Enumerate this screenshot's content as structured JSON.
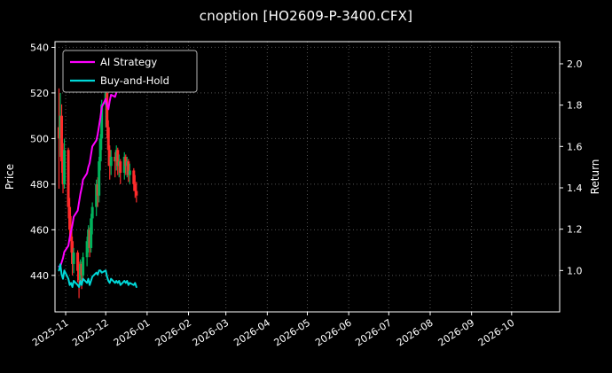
{
  "chart_data": {
    "type": "candlestick_with_lines",
    "title": "cnoption [HO2609-P-3400.CFX]",
    "background": "#000000",
    "text_color": "#ffffff",
    "grid_color": "#555555",
    "grid_style": "dotted",
    "legend_position": "upper-left",
    "ylabel_left": "Price",
    "ylabel_right": "Return",
    "x_range": [
      "2025-10-24",
      "2026-11-06"
    ],
    "x_tick_labels": [
      "2025-11",
      "2025-12",
      "2026-01",
      "2026-02",
      "2026-03",
      "2026-04",
      "2026-05",
      "2026-06",
      "2026-07",
      "2026-08",
      "2026-09",
      "2026-10"
    ],
    "ylim_price": [
      424,
      542.5
    ],
    "yticks_price": [
      440,
      460,
      480,
      500,
      520,
      540
    ],
    "ylim_return": [
      0.8,
      2.107
    ],
    "yticks_return": [
      "1.0",
      "1.2",
      "1.4",
      "1.6",
      "1.8",
      "2.0"
    ],
    "candle_colors": {
      "up": "#00b25c",
      "down": "#ff2b2b"
    },
    "candles": [
      [
        "2025-10-27",
        505,
        522,
        478,
        500
      ],
      [
        "2025-10-28",
        500,
        520,
        492,
        510
      ],
      [
        "2025-10-29",
        510,
        515,
        485,
        490
      ],
      [
        "2025-10-30",
        490,
        498,
        476,
        480
      ],
      [
        "2025-10-31",
        480,
        500,
        478,
        495
      ],
      [
        "2025-11-03",
        495,
        496,
        465,
        470
      ],
      [
        "2025-11-04",
        470,
        474,
        455,
        460
      ],
      [
        "2025-11-05",
        460,
        466,
        450,
        455
      ],
      [
        "2025-11-06",
        455,
        457,
        440,
        445
      ],
      [
        "2025-11-07",
        445,
        452,
        441,
        450
      ],
      [
        "2025-11-10",
        450,
        451,
        437,
        442
      ],
      [
        "2025-11-11",
        442,
        446,
        430,
        438
      ],
      [
        "2025-11-12",
        438,
        447,
        436,
        445
      ],
      [
        "2025-11-13",
        445,
        446,
        434,
        440
      ],
      [
        "2025-11-14",
        440,
        450,
        438,
        448
      ],
      [
        "2025-11-17",
        448,
        457,
        444,
        455
      ],
      [
        "2025-11-18",
        455,
        462,
        450,
        460
      ],
      [
        "2025-11-19",
        460,
        461,
        448,
        452
      ],
      [
        "2025-11-20",
        452,
        467,
        450,
        465
      ],
      [
        "2025-11-21",
        465,
        472,
        458,
        470
      ],
      [
        "2025-11-24",
        470,
        482,
        466,
        480
      ],
      [
        "2025-11-25",
        480,
        483,
        470,
        475
      ],
      [
        "2025-11-26",
        475,
        492,
        472,
        490
      ],
      [
        "2025-11-27",
        490,
        502,
        486,
        500
      ],
      [
        "2025-11-28",
        500,
        517,
        495,
        515
      ],
      [
        "2025-12-01",
        515,
        523,
        505,
        520
      ],
      [
        "2025-12-02",
        520,
        521,
        500,
        505
      ],
      [
        "2025-12-03",
        505,
        508,
        488,
        495
      ],
      [
        "2025-12-04",
        495,
        497,
        482,
        488
      ],
      [
        "2025-12-05",
        488,
        495,
        484,
        492
      ],
      [
        "2025-12-08",
        492,
        494,
        483,
        490
      ],
      [
        "2025-12-09",
        490,
        497,
        486,
        495
      ],
      [
        "2025-12-10",
        495,
        496,
        484,
        488
      ],
      [
        "2025-12-11",
        488,
        493,
        483,
        490
      ],
      [
        "2025-12-12",
        490,
        491,
        480,
        485
      ],
      [
        "2025-12-15",
        485,
        494,
        482,
        492
      ],
      [
        "2025-12-16",
        492,
        493,
        484,
        488
      ],
      [
        "2025-12-17",
        488,
        492,
        483,
        490
      ],
      [
        "2025-12-18",
        490,
        491,
        481,
        484
      ],
      [
        "2025-12-19",
        484,
        489,
        480,
        486
      ],
      [
        "2025-12-22",
        486,
        487,
        477,
        480
      ],
      [
        "2025-12-23",
        480,
        484,
        474,
        477
      ],
      [
        "2025-12-24",
        477,
        481,
        472,
        475
      ]
    ],
    "series": [
      {
        "name": "AI Strategy",
        "color": "#ff00ff",
        "axis": "return",
        "dates": [
          "2025-10-27",
          "2025-10-28",
          "2025-10-29",
          "2025-10-30",
          "2025-10-31",
          "2025-11-03",
          "2025-11-04",
          "2025-11-05",
          "2025-11-06",
          "2025-11-07",
          "2025-11-10",
          "2025-11-11",
          "2025-11-12",
          "2025-11-13",
          "2025-11-14",
          "2025-11-17",
          "2025-11-18",
          "2025-11-19",
          "2025-11-20",
          "2025-11-21",
          "2025-11-24",
          "2025-11-25",
          "2025-11-26",
          "2025-11-27",
          "2025-11-28",
          "2025-12-01",
          "2025-12-02",
          "2025-12-03",
          "2025-12-04",
          "2025-12-05",
          "2025-12-08",
          "2025-12-09",
          "2025-12-10"
        ],
        "values": [
          1.02,
          1.02,
          1.04,
          1.06,
          1.09,
          1.12,
          1.16,
          1.19,
          1.22,
          1.26,
          1.29,
          1.33,
          1.37,
          1.4,
          1.44,
          1.47,
          1.5,
          1.52,
          1.56,
          1.6,
          1.63,
          1.66,
          1.7,
          1.74,
          1.79,
          1.83,
          1.8,
          1.78,
          1.82,
          1.85,
          1.84,
          1.86,
          1.88
        ]
      },
      {
        "name": "Buy-and-Hold",
        "color": "#00d8d8",
        "axis": "return",
        "dates": [
          "2025-10-27",
          "2025-10-28",
          "2025-10-29",
          "2025-10-30",
          "2025-10-31",
          "2025-11-03",
          "2025-11-04",
          "2025-11-05",
          "2025-11-06",
          "2025-11-07",
          "2025-11-10",
          "2025-11-11",
          "2025-11-12",
          "2025-11-13",
          "2025-11-14",
          "2025-11-17",
          "2025-11-18",
          "2025-11-19",
          "2025-11-20",
          "2025-11-21",
          "2025-11-24",
          "2025-11-25",
          "2025-11-26",
          "2025-11-27",
          "2025-11-28",
          "2025-12-01",
          "2025-12-02",
          "2025-12-03",
          "2025-12-04",
          "2025-12-05",
          "2025-12-08",
          "2025-12-09",
          "2025-12-10",
          "2025-12-11",
          "2025-12-12",
          "2025-12-15",
          "2025-12-16",
          "2025-12-17",
          "2025-12-18",
          "2025-12-19",
          "2025-12-22",
          "2025-12-23",
          "2025-12-24"
        ],
        "values": [
          1.0,
          1.03,
          0.98,
          0.96,
          1.0,
          0.96,
          0.93,
          0.94,
          0.92,
          0.95,
          0.93,
          0.92,
          0.95,
          0.93,
          0.96,
          0.94,
          0.96,
          0.93,
          0.95,
          0.97,
          0.99,
          0.98,
          1.0,
          1.0,
          0.99,
          1.0,
          0.97,
          0.95,
          0.94,
          0.96,
          0.94,
          0.95,
          0.94,
          0.95,
          0.93,
          0.95,
          0.94,
          0.95,
          0.93,
          0.94,
          0.93,
          0.94,
          0.92
        ]
      }
    ]
  }
}
